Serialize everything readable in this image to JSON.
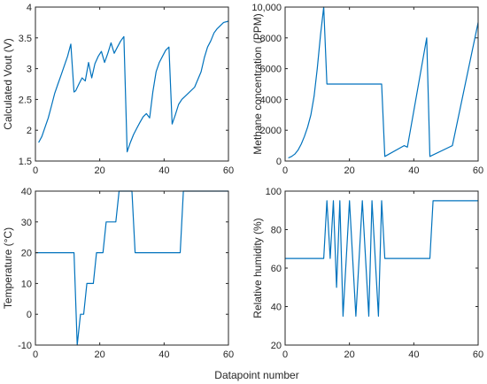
{
  "shared": {
    "xlabel": "Datapoint number",
    "line_color": "#0072BD"
  },
  "chart_data": [
    {
      "type": "line",
      "id": "vout",
      "title": "",
      "xlabel": "",
      "ylabel": "Calculated Vout (V)",
      "xlim": [
        0,
        60
      ],
      "ylim": [
        1.5,
        4
      ],
      "xticks": [
        0,
        20,
        40,
        60
      ],
      "yticks": [
        1.5,
        2,
        2.5,
        3,
        3.5,
        4
      ],
      "ytick_labels": [
        "1.5",
        "2",
        "2.5",
        "3",
        "3.5",
        "4"
      ],
      "grid": false,
      "x": [
        1,
        2,
        3,
        4,
        5,
        6,
        7,
        8,
        9,
        10,
        11,
        12,
        12.5,
        13.5,
        14.5,
        15.5,
        16.5,
        17.5,
        18.5,
        19.5,
        20.5,
        21.5,
        22.5,
        23.5,
        24.5,
        25.5,
        26.5,
        27.5,
        28.5,
        29.5,
        30.5,
        31.5,
        32.5,
        33.5,
        34.5,
        35.5,
        36.5,
        37.5,
        38.5,
        39.5,
        40.5,
        41.5,
        42.5,
        43.5,
        44.5,
        45.5,
        47.5,
        49.5,
        51.5,
        52.5,
        53.5,
        54.5,
        55.5,
        56.5,
        57.5,
        58.5,
        60
      ],
      "y": [
        1.8,
        1.9,
        2.05,
        2.2,
        2.4,
        2.6,
        2.75,
        2.9,
        3.05,
        3.2,
        3.4,
        2.62,
        2.64,
        2.75,
        2.85,
        2.8,
        3.1,
        2.85,
        3.08,
        3.2,
        3.28,
        3.1,
        3.25,
        3.42,
        3.25,
        3.35,
        3.45,
        3.52,
        1.65,
        1.8,
        1.93,
        2.03,
        2.13,
        2.22,
        2.27,
        2.2,
        2.62,
        2.95,
        3.1,
        3.2,
        3.3,
        3.35,
        2.1,
        2.25,
        2.42,
        2.5,
        2.6,
        2.7,
        2.95,
        3.18,
        3.35,
        3.45,
        3.58,
        3.65,
        3.7,
        3.75,
        3.77
      ]
    },
    {
      "type": "line",
      "id": "methane",
      "title": "",
      "xlabel": "",
      "ylabel": "Methane concentration (PPM)",
      "xlim": [
        0,
        60
      ],
      "ylim": [
        0,
        10000
      ],
      "xticks": [
        0,
        20,
        40,
        60
      ],
      "yticks": [
        0,
        2000,
        4000,
        6000,
        8000,
        10000
      ],
      "ytick_labels": [
        "0",
        "2000",
        "4000",
        "6000",
        "8000",
        "10,000"
      ],
      "grid": false,
      "x": [
        1,
        2,
        3,
        4,
        5,
        6,
        7,
        8,
        9,
        10,
        11,
        12,
        13,
        30,
        31,
        37,
        38,
        44,
        45,
        52,
        60
      ],
      "y": [
        200,
        300,
        450,
        700,
        1100,
        1600,
        2200,
        3000,
        4200,
        6000,
        8200,
        10000,
        5000,
        5000,
        300,
        1000,
        900,
        8000,
        300,
        1000,
        9000
      ]
    },
    {
      "type": "line",
      "id": "temperature",
      "title": "",
      "xlabel": "",
      "ylabel": "Temperature (°C)",
      "xlim": [
        0,
        60
      ],
      "ylim": [
        -10,
        40
      ],
      "xticks": [
        0,
        20,
        40,
        60
      ],
      "yticks": [
        -10,
        0,
        10,
        20,
        30,
        40
      ],
      "ytick_labels": [
        "-10",
        "0",
        "10",
        "20",
        "30",
        "40"
      ],
      "grid": false,
      "x": [
        0,
        12,
        13,
        14,
        15,
        16,
        17,
        18,
        19,
        20,
        21,
        22,
        23,
        25,
        26,
        27,
        28,
        30,
        31,
        45,
        46,
        60
      ],
      "y": [
        20,
        20,
        -10,
        0,
        0,
        10,
        10,
        10,
        20,
        20,
        20,
        30,
        30,
        30,
        40,
        40,
        40,
        40,
        20,
        20,
        40,
        40
      ]
    },
    {
      "type": "line",
      "id": "humidity",
      "title": "",
      "xlabel": "",
      "ylabel": "Relative humidity (%)",
      "xlim": [
        0,
        60
      ],
      "ylim": [
        20,
        100
      ],
      "xticks": [
        0,
        20,
        40,
        60
      ],
      "yticks": [
        20,
        40,
        60,
        80,
        100
      ],
      "ytick_labels": [
        "20",
        "40",
        "60",
        "80",
        "100"
      ],
      "grid": false,
      "x": [
        0,
        12,
        13,
        14,
        15,
        16,
        17,
        18,
        20,
        22,
        24,
        26,
        27,
        29,
        30,
        31,
        45,
        46,
        60
      ],
      "y": [
        65,
        65,
        95,
        65,
        95,
        50,
        95,
        35,
        95,
        35,
        95,
        35,
        95,
        35,
        95,
        65,
        65,
        95,
        95
      ]
    }
  ]
}
